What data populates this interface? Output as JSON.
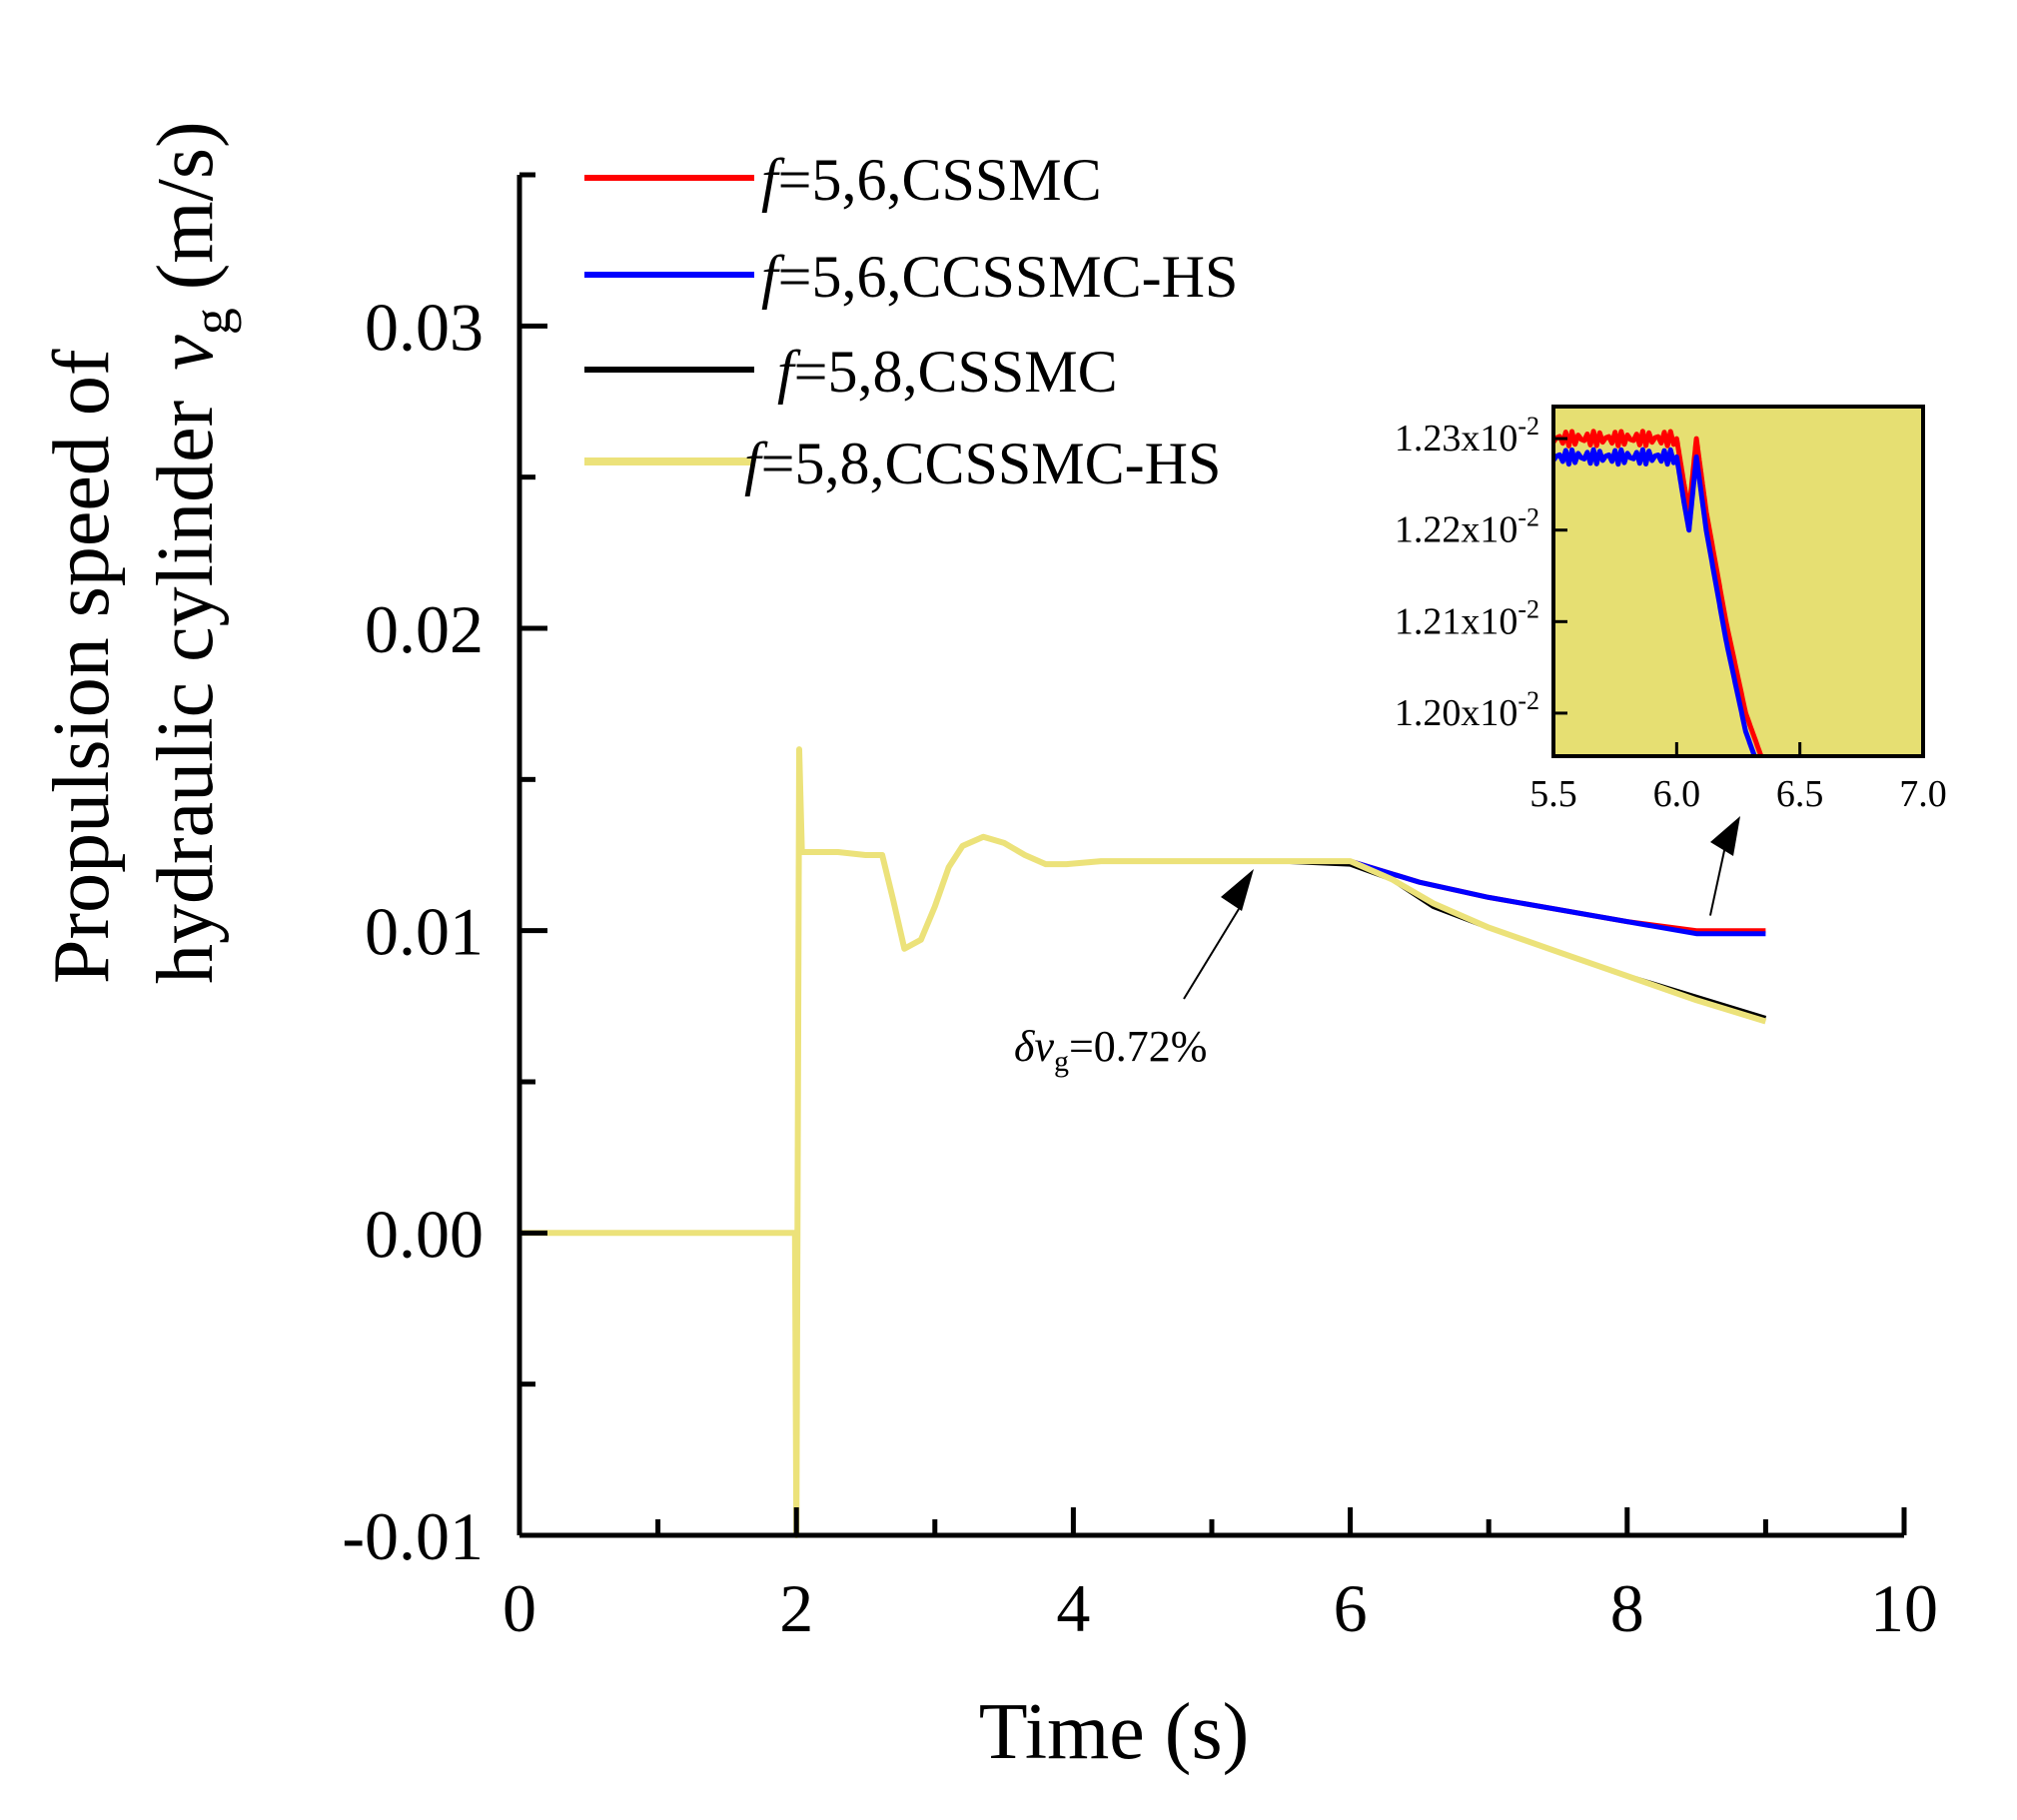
{
  "chart_data": {
    "type": "line",
    "xlabel": "Time (s)",
    "ylabel_line1": "Propulsion speed of",
    "ylabel_line2": "hydraulic cylinder",
    "ylabel_symbol": "v",
    "ylabel_subscript": "g",
    "ylabel_unit": "(m/s)",
    "xlim": [
      0,
      10
    ],
    "ylim": [
      -0.01,
      0.035
    ],
    "x_ticks": [
      "0",
      "2",
      "4",
      "6",
      "8",
      "10"
    ],
    "y_ticks": [
      "-0.01",
      "0.00",
      "0.01",
      "0.02",
      "0.03"
    ],
    "grid": false,
    "legend_position": "top-left",
    "series": [
      {
        "name": "f=5,6,CSSMC",
        "name_italic": "f",
        "name_rest": "=5,6,CSSMC",
        "color": "#ff0000",
        "x": [
          0,
          1.99,
          2.0,
          2.02,
          2.04,
          2.1,
          2.3,
          2.5,
          2.62,
          2.7,
          2.78,
          2.9,
          3.0,
          3.1,
          3.2,
          3.35,
          3.5,
          3.65,
          3.8,
          3.95,
          4.2,
          4.5,
          5.0,
          5.5,
          6.0,
          6.5,
          7.0,
          7.5,
          8.0,
          8.5,
          9.0
        ],
        "y": [
          0.0,
          0.0,
          -0.01,
          0.016,
          0.0126,
          0.0126,
          0.0126,
          0.0125,
          0.0125,
          0.011,
          0.0094,
          0.0097,
          0.0108,
          0.0121,
          0.0128,
          0.0131,
          0.0129,
          0.0125,
          0.0122,
          0.0122,
          0.0123,
          0.0123,
          0.0123,
          0.0123,
          0.0123,
          0.0116,
          0.0111,
          0.0107,
          0.0103,
          0.01,
          0.01
        ]
      },
      {
        "name": "f=5,6,CCSSMC-HS",
        "name_italic": "f",
        "name_rest": "=5,6,CCSSMC-HS",
        "color": "#0000ff",
        "x": [
          0,
          1.99,
          2.0,
          2.02,
          2.04,
          2.1,
          2.3,
          2.5,
          2.62,
          2.7,
          2.78,
          2.9,
          3.0,
          3.1,
          3.2,
          3.35,
          3.5,
          3.65,
          3.8,
          3.95,
          4.2,
          4.5,
          5.0,
          5.5,
          6.0,
          6.5,
          7.0,
          7.5,
          8.0,
          8.5,
          9.0
        ],
        "y": [
          0.0,
          0.0,
          -0.01,
          0.016,
          0.0126,
          0.0126,
          0.0126,
          0.0125,
          0.0125,
          0.011,
          0.0094,
          0.0097,
          0.0108,
          0.0121,
          0.0128,
          0.0131,
          0.0129,
          0.0125,
          0.0122,
          0.0122,
          0.0123,
          0.0123,
          0.0123,
          0.0123,
          0.0123,
          0.0116,
          0.0111,
          0.0107,
          0.0103,
          0.0099,
          0.0099
        ]
      },
      {
        "name": "f=5,8,CSSMC",
        "name_italic": "f",
        "name_rest": "=5,8,CSSMC",
        "color": "#000000",
        "x": [
          0,
          1.99,
          2.0,
          2.02,
          2.04,
          2.1,
          2.3,
          2.5,
          2.62,
          2.7,
          2.78,
          2.9,
          3.0,
          3.1,
          3.2,
          3.35,
          3.5,
          3.65,
          3.8,
          3.95,
          4.2,
          4.5,
          5.0,
          5.5,
          6.0,
          6.3,
          6.6,
          7.0,
          7.5,
          8.0,
          8.5,
          9.0
        ],
        "y": [
          0.0,
          0.0,
          -0.01,
          0.016,
          0.0126,
          0.0126,
          0.0126,
          0.0125,
          0.0125,
          0.011,
          0.0094,
          0.0097,
          0.0108,
          0.0121,
          0.0128,
          0.0131,
          0.0129,
          0.0125,
          0.0122,
          0.0122,
          0.0123,
          0.0123,
          0.0123,
          0.0123,
          0.0122,
          0.0117,
          0.0108,
          0.0101,
          0.0093,
          0.0085,
          0.0078,
          0.0071
        ]
      },
      {
        "name": "f=5,8,CCSSMC-HS",
        "name_italic": "f",
        "name_rest": "=5,8,CCSSMC-HS",
        "color": "#ece27a",
        "x": [
          0,
          1.99,
          2.0,
          2.02,
          2.04,
          2.1,
          2.3,
          2.5,
          2.62,
          2.7,
          2.78,
          2.9,
          3.0,
          3.1,
          3.2,
          3.35,
          3.5,
          3.65,
          3.8,
          3.95,
          4.2,
          4.5,
          5.0,
          5.5,
          6.0,
          6.3,
          6.6,
          7.0,
          7.5,
          8.0,
          8.5,
          9.0
        ],
        "y": [
          0.0,
          0.0,
          -0.01,
          0.016,
          0.0126,
          0.0126,
          0.0126,
          0.0125,
          0.0125,
          0.011,
          0.0094,
          0.0097,
          0.0108,
          0.0121,
          0.0128,
          0.0131,
          0.0129,
          0.0125,
          0.0122,
          0.0122,
          0.0123,
          0.0123,
          0.0123,
          0.0123,
          0.0123,
          0.0117,
          0.0109,
          0.0101,
          0.0093,
          0.0085,
          0.0077,
          0.007
        ]
      }
    ],
    "annotation": {
      "symbol": "δv",
      "subscript": "g",
      "text": "=0.72%",
      "x": 5.1,
      "y": 0.0123
    },
    "inset": {
      "xlim": [
        5.5,
        7.0
      ],
      "ylim": [
        0.011953,
        0.012335
      ],
      "x_ticks": [
        "5.5",
        "6.0",
        "6.5",
        "7.0"
      ],
      "y_ticks": [
        {
          "value": 0.0123,
          "mantissa": "1.23x10",
          "exp": "-2"
        },
        {
          "value": 0.0122,
          "mantissa": "1.22x10",
          "exp": "-2"
        },
        {
          "value": 0.0121,
          "mantissa": "1.21x10",
          "exp": "-2"
        },
        {
          "value": 0.012,
          "mantissa": "1.20x10",
          "exp": "-2"
        }
      ],
      "background": "#e6df72",
      "pointer_to": {
        "x": 8.6,
        "y": 0.0105
      },
      "series": [
        {
          "color": "#ff0000",
          "x": [
            5.5,
            6.0,
            6.03,
            6.05,
            6.08,
            6.12,
            6.2,
            6.28,
            6.36,
            6.4
          ],
          "y": [
            0.0123,
            0.0123,
            0.01225,
            0.01222,
            0.0123,
            0.01222,
            0.0121,
            0.012,
            0.01194,
            0.01192
          ]
        },
        {
          "color": "#0000ff",
          "x": [
            5.5,
            6.0,
            6.03,
            6.05,
            6.08,
            6.12,
            6.2,
            6.28,
            6.36,
            6.4
          ],
          "y": [
            0.01228,
            0.01228,
            0.01223,
            0.0122,
            0.01228,
            0.0122,
            0.01208,
            0.01198,
            0.01192,
            0.0119
          ]
        }
      ]
    }
  }
}
